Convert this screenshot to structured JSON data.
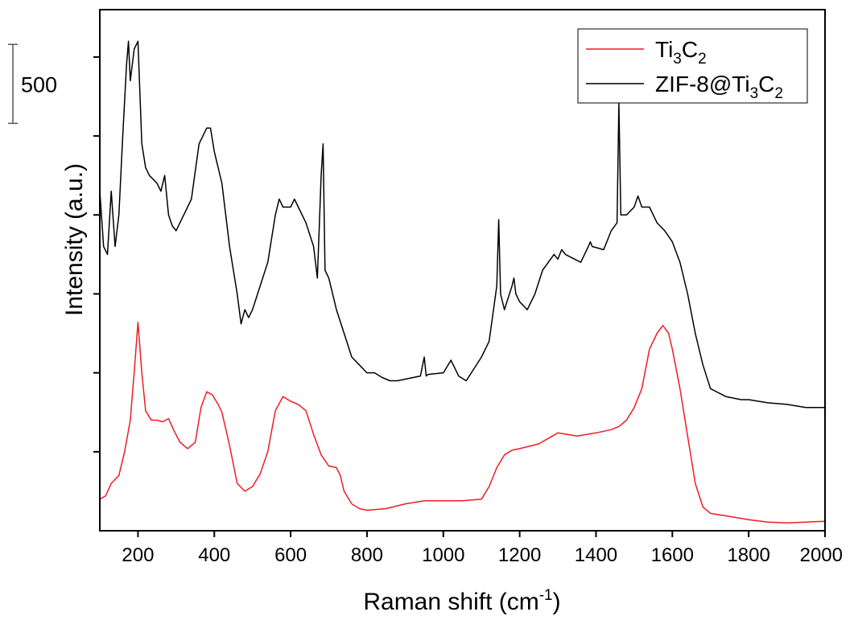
{
  "chart_data": {
    "type": "line",
    "xlabel": "Raman shift (cm",
    "xlabel_sup": "-1",
    "xlabel_end": ")",
    "ylabel": "Intensity (a.u.)",
    "xlim": [
      100,
      2000
    ],
    "ylim": [
      0,
      3300
    ],
    "x_ticks": [
      200,
      400,
      600,
      800,
      1000,
      1200,
      1400,
      1600,
      1800,
      2000
    ],
    "y_ticks_unlabeled": [
      500,
      1000,
      1500,
      2000,
      2500,
      3000
    ],
    "scale_bar": {
      "label": "500",
      "value": 500,
      "from": 2580,
      "to": 3080
    },
    "legend_position": "top-right",
    "series": [
      {
        "name": "Ti3C2",
        "name_parts": [
          "Ti",
          "3",
          "C",
          "2"
        ],
        "color": "#ee1c25",
        "x": [
          100,
          115,
          130,
          150,
          165,
          180,
          190,
          200,
          210,
          220,
          235,
          250,
          265,
          280,
          295,
          310,
          330,
          350,
          365,
          380,
          395,
          410,
          420,
          440,
          460,
          480,
          500,
          520,
          540,
          560,
          580,
          600,
          620,
          640,
          660,
          680,
          700,
          720,
          730,
          740,
          760,
          780,
          800,
          850,
          900,
          950,
          1000,
          1050,
          1100,
          1120,
          1140,
          1160,
          1180,
          1200,
          1250,
          1300,
          1350,
          1400,
          1440,
          1460,
          1480,
          1500,
          1520,
          1540,
          1560,
          1575,
          1590,
          1600,
          1620,
          1640,
          1660,
          1680,
          1700,
          1750,
          1800,
          1850,
          1900,
          1950,
          2000
        ],
        "y": [
          200,
          220,
          300,
          350,
          500,
          700,
          1000,
          1320,
          1000,
          760,
          700,
          700,
          690,
          710,
          630,
          560,
          520,
          560,
          780,
          880,
          860,
          800,
          750,
          540,
          300,
          250,
          280,
          360,
          500,
          760,
          850,
          820,
          800,
          760,
          610,
          480,
          410,
          400,
          350,
          250,
          170,
          140,
          130,
          140,
          170,
          190,
          190,
          190,
          200,
          280,
          400,
          480,
          510,
          520,
          550,
          620,
          600,
          620,
          640,
          660,
          700,
          780,
          900,
          1150,
          1250,
          1300,
          1250,
          1150,
          900,
          600,
          300,
          150,
          110,
          90,
          70,
          55,
          50,
          55,
          60
        ]
      },
      {
        "name": "ZIF-8@Ti3C2",
        "name_parts": [
          "ZIF-8@Ti",
          "3",
          "C",
          "2"
        ],
        "color": "#000000",
        "x": [
          100,
          110,
          120,
          130,
          140,
          150,
          160,
          170,
          175,
          180,
          190,
          200,
          210,
          220,
          230,
          250,
          260,
          270,
          280,
          290,
          300,
          320,
          340,
          360,
          380,
          390,
          400,
          420,
          440,
          460,
          470,
          480,
          490,
          500,
          520,
          540,
          560,
          570,
          580,
          600,
          610,
          620,
          640,
          660,
          670,
          680,
          685,
          690,
          700,
          720,
          740,
          760,
          780,
          800,
          820,
          840,
          860,
          880,
          900,
          940,
          950,
          955,
          960,
          1000,
          1020,
          1040,
          1060,
          1100,
          1120,
          1140,
          1145,
          1150,
          1160,
          1180,
          1185,
          1190,
          1200,
          1220,
          1240,
          1260,
          1290,
          1300,
          1310,
          1320,
          1360,
          1380,
          1385,
          1390,
          1420,
          1440,
          1455,
          1460,
          1465,
          1480,
          1500,
          1510,
          1520,
          1540,
          1560,
          1580,
          1600,
          1620,
          1640,
          1660,
          1680,
          1700,
          1740,
          1780,
          1800,
          1850,
          1900,
          1950,
          2000
        ],
        "y": [
          2150,
          1800,
          1750,
          2150,
          1800,
          2000,
          2500,
          2950,
          3100,
          2850,
          3050,
          3100,
          2450,
          2300,
          2250,
          2200,
          2150,
          2250,
          2000,
          1930,
          1900,
          2000,
          2100,
          2450,
          2550,
          2550,
          2400,
          2200,
          1800,
          1500,
          1310,
          1400,
          1350,
          1400,
          1550,
          1700,
          2000,
          2100,
          2050,
          2050,
          2100,
          2050,
          1950,
          1800,
          1600,
          2250,
          2450,
          1650,
          1600,
          1400,
          1250,
          1100,
          1050,
          1000,
          1000,
          970,
          950,
          950,
          960,
          980,
          1100,
          980,
          990,
          1000,
          1080,
          980,
          950,
          1100,
          1200,
          1550,
          1970,
          1500,
          1400,
          1550,
          1600,
          1500,
          1450,
          1400,
          1500,
          1650,
          1750,
          1720,
          1780,
          1750,
          1700,
          1800,
          1830,
          1800,
          1780,
          1900,
          1950,
          2710,
          2000,
          2000,
          2050,
          2120,
          2050,
          2050,
          1950,
          1900,
          1830,
          1700,
          1500,
          1250,
          1050,
          900,
          850,
          830,
          830,
          810,
          800,
          780,
          780
        ]
      }
    ]
  }
}
